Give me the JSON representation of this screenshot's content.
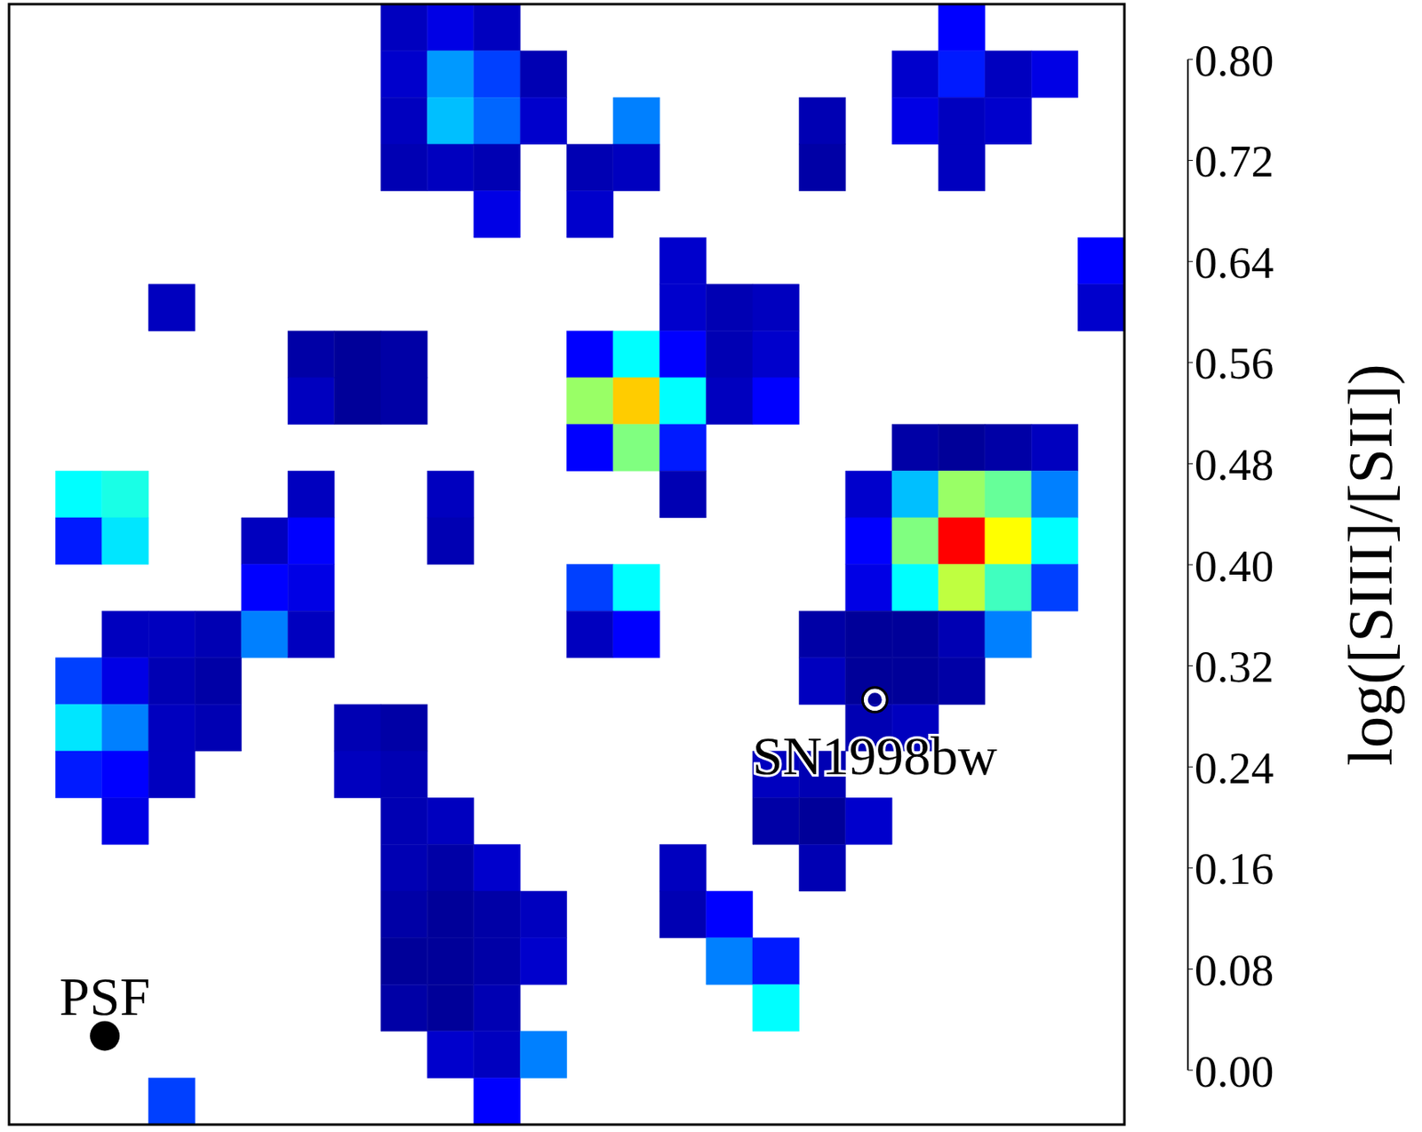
{
  "chart_data": {
    "type": "heatmap",
    "xlim": [
      0,
      24
    ],
    "ylim": [
      0,
      24
    ],
    "tick_labels": false,
    "cells": [
      [
        null,
        null,
        null,
        null,
        null,
        null,
        null,
        null,
        0.05,
        0.08,
        0.05,
        null,
        null,
        null,
        null,
        null,
        null,
        null,
        null,
        null,
        0.1,
        null,
        null,
        null
      ],
      [
        null,
        null,
        null,
        null,
        null,
        null,
        null,
        null,
        0.06,
        0.22,
        0.15,
        0.04,
        null,
        null,
        null,
        null,
        null,
        null,
        null,
        0.06,
        0.12,
        0.05,
        0.08,
        null
      ],
      [
        null,
        null,
        null,
        null,
        null,
        null,
        null,
        null,
        0.05,
        0.25,
        0.18,
        0.06,
        null,
        0.2,
        null,
        null,
        null,
        0.04,
        null,
        0.08,
        0.05,
        0.06,
        null,
        null
      ],
      [
        null,
        null,
        null,
        null,
        null,
        null,
        null,
        null,
        0.04,
        0.05,
        0.04,
        null,
        0.04,
        0.05,
        null,
        null,
        null,
        0.03,
        null,
        null,
        0.05,
        null,
        null,
        null
      ],
      [
        null,
        null,
        null,
        null,
        null,
        null,
        null,
        null,
        null,
        null,
        0.08,
        null,
        0.06,
        null,
        null,
        null,
        null,
        null,
        null,
        null,
        null,
        null,
        null,
        null
      ],
      [
        null,
        null,
        null,
        null,
        null,
        null,
        null,
        null,
        null,
        null,
        null,
        null,
        null,
        null,
        0.06,
        null,
        null,
        null,
        null,
        null,
        null,
        null,
        null,
        0.1
      ],
      [
        null,
        null,
        null,
        0.05,
        null,
        null,
        null,
        null,
        null,
        null,
        null,
        null,
        null,
        null,
        0.06,
        0.04,
        0.05,
        null,
        null,
        null,
        null,
        null,
        null,
        0.06
      ],
      [
        null,
        null,
        null,
        null,
        null,
        null,
        0.03,
        0.02,
        0.03,
        null,
        null,
        null,
        0.1,
        0.3,
        0.1,
        0.04,
        0.06,
        null,
        null,
        null,
        null,
        null,
        null,
        null
      ],
      [
        null,
        null,
        null,
        null,
        null,
        null,
        0.05,
        0.02,
        0.03,
        null,
        null,
        null,
        0.42,
        0.54,
        0.3,
        0.05,
        0.1,
        null,
        null,
        null,
        null,
        null,
        null,
        null
      ],
      [
        null,
        null,
        null,
        null,
        null,
        null,
        null,
        null,
        null,
        null,
        null,
        null,
        0.1,
        0.4,
        0.12,
        null,
        null,
        null,
        null,
        0.03,
        0.02,
        0.03,
        0.05,
        null
      ],
      [
        null,
        0.3,
        0.32,
        null,
        null,
        null,
        0.05,
        null,
        null,
        0.05,
        null,
        null,
        null,
        null,
        0.04,
        null,
        null,
        null,
        0.06,
        0.25,
        0.42,
        0.38,
        0.2,
        null
      ],
      [
        null,
        0.12,
        0.28,
        null,
        null,
        0.05,
        0.1,
        null,
        null,
        0.04,
        null,
        null,
        null,
        null,
        null,
        null,
        null,
        null,
        0.1,
        0.4,
        0.7,
        0.5,
        0.3,
        null
      ],
      [
        null,
        null,
        null,
        null,
        null,
        0.1,
        0.08,
        null,
        null,
        null,
        null,
        null,
        0.15,
        0.3,
        null,
        null,
        null,
        null,
        0.08,
        0.3,
        0.45,
        0.35,
        0.15,
        null
      ],
      [
        null,
        null,
        0.05,
        0.05,
        0.04,
        0.2,
        0.05,
        null,
        null,
        null,
        null,
        null,
        0.05,
        0.1,
        null,
        null,
        null,
        0.03,
        0.02,
        0.02,
        0.04,
        0.2,
        null,
        null
      ],
      [
        null,
        0.15,
        0.08,
        0.04,
        0.03,
        null,
        null,
        null,
        null,
        null,
        null,
        null,
        null,
        null,
        null,
        null,
        null,
        0.05,
        0.02,
        0.02,
        0.03,
        null,
        null,
        null
      ],
      [
        null,
        0.28,
        0.2,
        0.05,
        0.04,
        null,
        null,
        0.04,
        0.03,
        null,
        null,
        null,
        null,
        null,
        null,
        null,
        null,
        null,
        0.04,
        0.05,
        null,
        null,
        null,
        null
      ],
      [
        null,
        0.12,
        0.1,
        0.05,
        null,
        null,
        null,
        0.05,
        0.04,
        null,
        null,
        null,
        null,
        null,
        null,
        null,
        0.05,
        0.04,
        null,
        null,
        null,
        null,
        null,
        null
      ],
      [
        null,
        null,
        0.08,
        null,
        null,
        null,
        null,
        null,
        0.04,
        0.05,
        null,
        null,
        null,
        null,
        null,
        null,
        0.03,
        0.02,
        0.06,
        null,
        null,
        null,
        null,
        null
      ],
      [
        null,
        null,
        null,
        null,
        null,
        null,
        null,
        null,
        0.04,
        0.03,
        0.06,
        null,
        null,
        null,
        0.05,
        null,
        null,
        0.04,
        null,
        null,
        null,
        null,
        null,
        null
      ],
      [
        null,
        null,
        null,
        null,
        null,
        null,
        null,
        null,
        0.03,
        0.02,
        0.03,
        0.05,
        null,
        null,
        0.04,
        0.1,
        null,
        null,
        null,
        null,
        null,
        null,
        null,
        null
      ],
      [
        null,
        null,
        null,
        null,
        null,
        null,
        null,
        null,
        0.02,
        0.02,
        0.03,
        0.06,
        null,
        null,
        null,
        0.2,
        0.12,
        null,
        null,
        null,
        null,
        null,
        null,
        null
      ],
      [
        null,
        null,
        null,
        null,
        null,
        null,
        null,
        null,
        0.03,
        0.02,
        0.04,
        null,
        null,
        null,
        null,
        null,
        0.3,
        null,
        null,
        null,
        null,
        null,
        null,
        null
      ],
      [
        null,
        null,
        null,
        null,
        null,
        null,
        null,
        null,
        null,
        0.06,
        0.05,
        0.2,
        null,
        null,
        null,
        null,
        null,
        null,
        null,
        null,
        null,
        null,
        null,
        null
      ],
      [
        null,
        null,
        null,
        0.15,
        null,
        null,
        null,
        null,
        null,
        null,
        0.1,
        null,
        null,
        null,
        null,
        null,
        null,
        null,
        null,
        null,
        null,
        null,
        null,
        null
      ]
    ],
    "colorbar": {
      "label": "log([SIII]/[SII])",
      "range": [
        0,
        0.8
      ],
      "ticks": [
        {
          "value": 0,
          "label": "0.00"
        },
        {
          "value": 0.08,
          "label": "0.08"
        },
        {
          "value": 0.16,
          "label": "0.16"
        },
        {
          "value": 0.24,
          "label": "0.24"
        },
        {
          "value": 0.32,
          "label": "0.32"
        },
        {
          "value": 0.4,
          "label": "0.40"
        },
        {
          "value": 0.48,
          "label": "0.48"
        },
        {
          "value": 0.56,
          "label": "0.56"
        },
        {
          "value": 0.64,
          "label": "0.64"
        },
        {
          "value": 0.72,
          "label": "0.72"
        },
        {
          "value": 0.8,
          "label": "0.80"
        }
      ]
    },
    "annotations": [
      {
        "text": "PSF",
        "x": 2.06,
        "y": 22.1,
        "marker": "dot"
      },
      {
        "text": "SN1998bw",
        "x": 18.63,
        "y": 14.9,
        "marker": "circle"
      }
    ]
  }
}
